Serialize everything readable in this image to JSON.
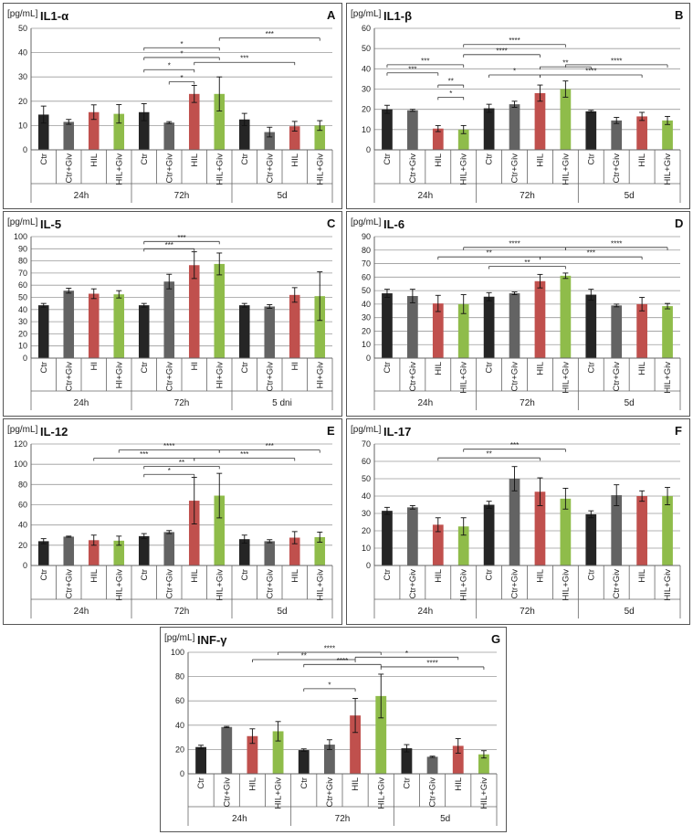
{
  "colors": {
    "black": "#252525",
    "gray": "#636363",
    "red": "#c0504d",
    "green": "#8fbc4a"
  },
  "panel_unit": "[pg/mL]",
  "chart_data": [
    {
      "id": "A",
      "type": "bar",
      "title": "IL1-α",
      "letter": "A",
      "ylabel": "[pg/mL]",
      "ylim": [
        0,
        50
      ],
      "ystep": 10,
      "categories": [
        "Ctr",
        "Ctr+Giv",
        "HIL",
        "HIL+Giv",
        "Ctr",
        "Ctr+Giv",
        "HIL",
        "HIL+Giv",
        "Ctr",
        "Ctr+Giv",
        "HIL",
        "HIL+Giv"
      ],
      "groups": [
        "24h",
        "72h",
        "5d"
      ],
      "colors": [
        "black",
        "gray",
        "red",
        "green",
        "black",
        "gray",
        "red",
        "green",
        "black",
        "gray",
        "red",
        "green"
      ],
      "values": [
        14.5,
        11.5,
        15.5,
        14.8,
        15.5,
        11.2,
        23,
        23,
        12.5,
        7.3,
        9.7,
        10
      ],
      "errors": [
        3.5,
        1,
        3,
        3.8,
        3.5,
        0.4,
        3.5,
        7,
        2.5,
        2,
        2,
        2
      ],
      "significance": [
        {
          "from": 4,
          "to": 6,
          "label": "*",
          "level": 33
        },
        {
          "from": 4,
          "to": 7,
          "label": "*",
          "level": 38
        },
        {
          "from": 5,
          "to": 6,
          "label": "*",
          "level": 28
        },
        {
          "from": 4,
          "to": 7,
          "label": "*",
          "level": 42
        },
        {
          "from": 6,
          "to": 10,
          "label": "***",
          "level": 36
        },
        {
          "from": 7,
          "to": 11,
          "label": "***",
          "level": 46
        }
      ]
    },
    {
      "id": "B",
      "type": "bar",
      "title": "IL1-β",
      "letter": "B",
      "ylabel": "[pg/mL]",
      "ylim": [
        0,
        60
      ],
      "ystep": 10,
      "categories": [
        "Ctr",
        "Ctr+Giv",
        "HIL",
        "HIL+Giv",
        "Ctr",
        "Ctr+Giv",
        "HIL",
        "HIL+Giv",
        "Ctr",
        "Ctr+Giv",
        "HIL",
        "HIL+Giv"
      ],
      "groups": [
        "24h",
        "72h",
        "5d"
      ],
      "colors": [
        "black",
        "gray",
        "red",
        "green",
        "black",
        "gray",
        "red",
        "green",
        "black",
        "gray",
        "red",
        "green"
      ],
      "values": [
        20,
        19.5,
        10.5,
        10,
        20.5,
        22.5,
        28,
        30,
        19,
        14.5,
        16.5,
        14.5
      ],
      "errors": [
        2,
        0.5,
        1.5,
        2,
        2,
        1.5,
        4,
        4,
        0.5,
        1.5,
        2,
        2
      ],
      "significance": [
        {
          "from": 2,
          "to": 3,
          "label": "*",
          "level": 26
        },
        {
          "from": 2,
          "to": 3,
          "label": "**",
          "level": 32
        },
        {
          "from": 0,
          "to": 2,
          "label": "***",
          "level": 38
        },
        {
          "from": 0,
          "to": 3,
          "label": "***",
          "level": 42
        },
        {
          "from": 3,
          "to": 7,
          "label": "****",
          "level": 52
        },
        {
          "from": 3,
          "to": 6,
          "label": "****",
          "level": 47
        },
        {
          "from": 4,
          "to": 6,
          "label": "*",
          "level": 37
        },
        {
          "from": 6,
          "to": 8,
          "label": "**",
          "level": 41
        },
        {
          "from": 6,
          "to": 10,
          "label": "****",
          "level": 37
        },
        {
          "from": 7,
          "to": 11,
          "label": "****",
          "level": 42
        }
      ]
    },
    {
      "id": "C",
      "type": "bar",
      "title": "IL-5",
      "letter": "C",
      "ylabel": "[pg/mL]",
      "ylim": [
        0,
        100
      ],
      "ystep": 10,
      "categories": [
        "Ctr",
        "Ctr+Giv",
        "HI",
        "HI+Giv",
        "Ctr",
        "Ctr+Giv",
        "HI",
        "HI+Giv",
        "Ctr",
        "Ctr+Giv",
        "HI",
        "HI+Giv"
      ],
      "groups": [
        "24h",
        "72h",
        "5 dni"
      ],
      "colors": [
        "black",
        "gray",
        "red",
        "green",
        "black",
        "gray",
        "red",
        "green",
        "black",
        "gray",
        "red",
        "green"
      ],
      "values": [
        43.5,
        55.5,
        53,
        52.5,
        43.5,
        63,
        76.5,
        77.5,
        43.5,
        42.5,
        52,
        51
      ],
      "errors": [
        1.5,
        2,
        4,
        3,
        1.5,
        6,
        11,
        9,
        1.5,
        1.5,
        6,
        20
      ],
      "significance": [
        {
          "from": 4,
          "to": 6,
          "label": "***",
          "level": 90
        },
        {
          "from": 4,
          "to": 7,
          "label": "***",
          "level": 96
        }
      ]
    },
    {
      "id": "D",
      "type": "bar",
      "title": "IL-6",
      "letter": "D",
      "ylabel": "[pg/mL]",
      "ylim": [
        0,
        90
      ],
      "ystep": 10,
      "categories": [
        "Ctr",
        "Ctr+Giv",
        "HIL",
        "HIL+Giv",
        "Ctr",
        "Ctr+Giv",
        "HIL",
        "HIL+Giv",
        "Ctr",
        "Ctr+Giv",
        "HIL",
        "HIL+Giv"
      ],
      "groups": [
        "24h",
        "72h",
        "5d"
      ],
      "colors": [
        "black",
        "gray",
        "red",
        "green",
        "black",
        "gray",
        "red",
        "green",
        "black",
        "gray",
        "red",
        "green"
      ],
      "values": [
        48,
        46,
        40.5,
        40,
        45.5,
        48,
        57,
        61,
        47,
        39,
        40,
        38.5
      ],
      "errors": [
        3,
        5,
        6,
        7,
        3,
        1,
        5,
        2,
        4,
        1,
        5,
        2
      ],
      "significance": [
        {
          "from": 4,
          "to": 7,
          "label": "**",
          "level": 68
        },
        {
          "from": 2,
          "to": 6,
          "label": "**",
          "level": 75
        },
        {
          "from": 3,
          "to": 7,
          "label": "****",
          "level": 82
        },
        {
          "from": 6,
          "to": 10,
          "label": "***",
          "level": 75
        },
        {
          "from": 7,
          "to": 11,
          "label": "****",
          "level": 82
        }
      ]
    },
    {
      "id": "E",
      "type": "bar",
      "title": "IL-12",
      "letter": "E",
      "ylabel": "[pg/mL]",
      "ylim": [
        0,
        120
      ],
      "ystep": 20,
      "categories": [
        "Ctr",
        "Ctr+Giv",
        "HIL",
        "HIL+Giv",
        "Ctr",
        "Ctr+Giv",
        "HIL",
        "HIL+Giv",
        "Ctr",
        "Ctr+Giv",
        "HIL",
        "HIL+Giv"
      ],
      "groups": [
        "24h",
        "72h",
        "5d"
      ],
      "colors": [
        "black",
        "gray",
        "red",
        "green",
        "black",
        "gray",
        "red",
        "green",
        "black",
        "gray",
        "red",
        "green"
      ],
      "values": [
        24,
        28.5,
        25,
        24.5,
        29,
        33,
        64,
        69,
        26,
        24,
        27.5,
        28
      ],
      "errors": [
        2.5,
        0.5,
        5,
        4.5,
        2.5,
        1.5,
        23,
        22,
        4,
        1.5,
        6,
        5
      ],
      "significance": [
        {
          "from": 4,
          "to": 6,
          "label": "*",
          "level": 90
        },
        {
          "from": 4,
          "to": 7,
          "label": "**",
          "level": 98
        },
        {
          "from": 2,
          "to": 6,
          "label": "***",
          "level": 106
        },
        {
          "from": 3,
          "to": 7,
          "label": "****",
          "level": 114
        },
        {
          "from": 6,
          "to": 10,
          "label": "***",
          "level": 106
        },
        {
          "from": 7,
          "to": 11,
          "label": "***",
          "level": 114
        }
      ]
    },
    {
      "id": "F",
      "type": "bar",
      "title": "IL-17",
      "letter": "F",
      "ylabel": "[pg/mL]",
      "ylim": [
        0,
        70
      ],
      "ystep": 10,
      "categories": [
        "Ctr",
        "Ctr+Giv",
        "HIL",
        "HIL+Giv",
        "Ctr",
        "Ctr+Giv",
        "HIL",
        "HIL+Giv",
        "Ctr",
        "Ctr+Giv",
        "HIL",
        "HIL+Giv"
      ],
      "groups": [
        "24h",
        "72h",
        "5d"
      ],
      "colors": [
        "black",
        "gray",
        "red",
        "green",
        "black",
        "gray",
        "red",
        "green",
        "black",
        "gray",
        "red",
        "green"
      ],
      "values": [
        31.5,
        33.5,
        23.5,
        22.5,
        35,
        50,
        42.5,
        38.5,
        29.5,
        40.5,
        40,
        40
      ],
      "errors": [
        2,
        1,
        4,
        5,
        2,
        7,
        8,
        6,
        2,
        6,
        3,
        5
      ],
      "significance": [
        {
          "from": 2,
          "to": 6,
          "label": "**",
          "level": 62
        },
        {
          "from": 3,
          "to": 7,
          "label": "***",
          "level": 67
        }
      ]
    },
    {
      "id": "G",
      "type": "bar",
      "title": "INF-γ",
      "letter": "G",
      "ylabel": "[pg/mL]",
      "ylim": [
        0,
        100
      ],
      "ystep": 20,
      "categories": [
        "Ctr",
        "Ctr+Giv",
        "HIL",
        "HIL+Giv",
        "Ctr",
        "Ctr+Giv",
        "HIL",
        "HIL+Giv",
        "Ctr",
        "Ctr+Giv",
        "HIL",
        "HIL+Giv"
      ],
      "groups": [
        "24h",
        "72h",
        "5d"
      ],
      "colors": [
        "black",
        "gray",
        "red",
        "green",
        "black",
        "gray",
        "red",
        "green",
        "black",
        "gray",
        "red",
        "green"
      ],
      "values": [
        22,
        38.5,
        31,
        35,
        19.5,
        24,
        48,
        64,
        21,
        14,
        23,
        16
      ],
      "errors": [
        1.5,
        0.5,
        6,
        8,
        1,
        4,
        14,
        18,
        3,
        0.5,
        6,
        3
      ],
      "significance": [
        {
          "from": 4,
          "to": 6,
          "label": "*",
          "level": 70
        },
        {
          "from": 4,
          "to": 7,
          "label": "****",
          "level": 90
        },
        {
          "from": 2,
          "to": 6,
          "label": "**",
          "level": 94
        },
        {
          "from": 3,
          "to": 7,
          "label": "****",
          "level": 100
        },
        {
          "from": 6,
          "to": 10,
          "label": "*",
          "level": 96
        },
        {
          "from": 7,
          "to": 11,
          "label": "****",
          "level": 88
        }
      ]
    }
  ]
}
